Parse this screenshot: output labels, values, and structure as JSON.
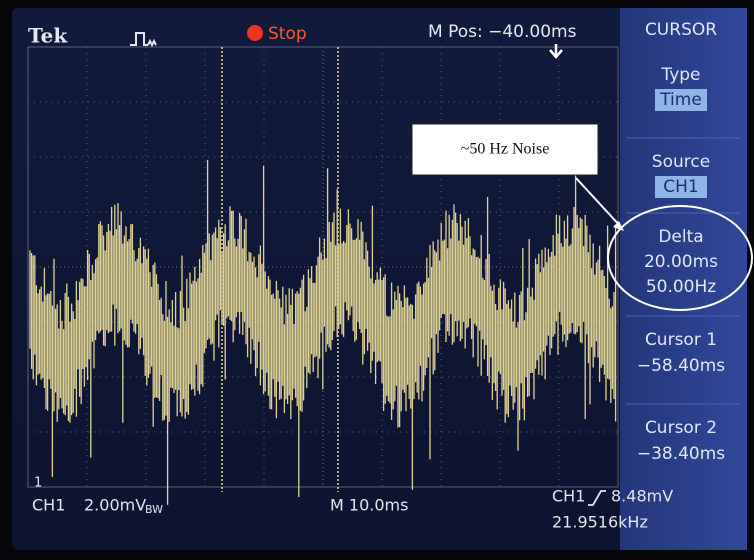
{
  "header": {
    "brand": "Tek",
    "status": "Stop",
    "position": "M Pos: −40.00ms"
  },
  "menu": {
    "title": "CURSOR",
    "items": [
      {
        "label": "Type",
        "values": [
          "Time"
        ]
      },
      {
        "label": "Source",
        "values": [
          "CH1"
        ]
      },
      {
        "label": "Delta",
        "values": [
          "20.00ms",
          "50.00Hz"
        ]
      },
      {
        "label": "Cursor 1",
        "values": [
          "−58.40ms"
        ]
      },
      {
        "label": "Cursor 2",
        "values": [
          "−38.40ms"
        ]
      }
    ]
  },
  "footer": {
    "channel": "CH1",
    "scale": "2.00mV",
    "bandwidth": "BW",
    "timebase": "M 10.0ms",
    "trigger_source": "CH1",
    "trigger_level": "8.48mV",
    "frequency": "21.9516kHz"
  },
  "marker": "1",
  "annotation": "~50 Hz Noise"
}
